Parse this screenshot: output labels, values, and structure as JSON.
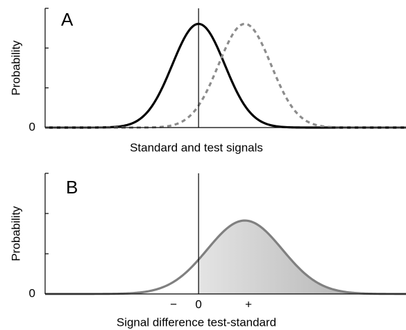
{
  "chart_data": [
    {
      "type": "density",
      "label": "A",
      "ylabel": "Probability",
      "xlabel": "Standard and test signals",
      "xlim": [
        -6.14,
        8.3
      ],
      "ylim": [
        0,
        1.15
      ],
      "yticks": [
        0
      ],
      "minor_yticks": [
        0.383,
        0.767,
        1.15
      ],
      "xticks": [],
      "x_marker": 0,
      "series": [
        {
          "mean": 0,
          "sd": 1.05,
          "peak": 1,
          "color": "#000000",
          "dashed": false
        },
        {
          "mean": 1.85,
          "sd": 1.05,
          "peak": 1,
          "color": "#8c8c8c",
          "dashed": true
        }
      ]
    },
    {
      "type": "density",
      "label": "B",
      "ylabel": "Probability",
      "xlabel": "Signal difference test-standard",
      "xlim": [
        -6.14,
        8.3
      ],
      "ylim": [
        0,
        1.15
      ],
      "yticks": [
        0
      ],
      "minor_yticks": [
        0.383,
        0.767,
        1.15
      ],
      "xticks": [
        {
          "value": -1,
          "label": "−"
        },
        0,
        {
          "value": 2,
          "label": "+"
        }
      ],
      "x_marker": 0,
      "series": [
        {
          "mean": 1.85,
          "sd": 1.5,
          "peak": 0.7,
          "color": "#808080",
          "dashed": false,
          "shade_from": 0
        }
      ]
    }
  ]
}
